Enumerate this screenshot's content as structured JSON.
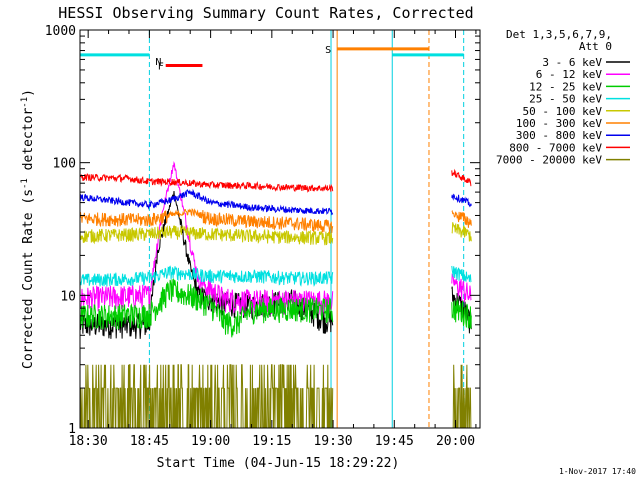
{
  "chart_data": {
    "type": "line",
    "title": "HESSI Observing Summary Count Rates, Corrected",
    "xlabel": "Start Time (04-Jun-15 18:29:22)",
    "ylabel_parts": [
      "Corrected Count Rate (s",
      "-1",
      " detector",
      "-1",
      ")"
    ],
    "yscale": "log",
    "ylim": [
      1,
      1000
    ],
    "xlim_minutes": [
      -2,
      96
    ],
    "x_tick_labels": [
      {
        "label": "18:30",
        "minutes": 0
      },
      {
        "label": "18:45",
        "minutes": 15
      },
      {
        "label": "19:00",
        "minutes": 30
      },
      {
        "label": "19:15",
        "minutes": 45
      },
      {
        "label": "19:30",
        "minutes": 60
      },
      {
        "label": "19:45",
        "minutes": 75
      },
      {
        "label": "20:00",
        "minutes": 90
      }
    ],
    "y_tick_labels": [
      {
        "label": "1",
        "value": 1
      },
      {
        "label": "10",
        "value": 10
      },
      {
        "label": "100",
        "value": 100
      },
      {
        "label": "1000",
        "value": 1000
      }
    ],
    "legend_header": [
      "Det 1,3,5,6,7,9,",
      "Att 0"
    ],
    "legend_position": "right",
    "footer_date": "1-Nov-2017 17:40",
    "gaps_minutes": [
      [
        60,
        89
      ]
    ],
    "series": [
      {
        "name": "3 - 6 keV",
        "color": "#000000",
        "points": [
          [
            -2,
            6
          ],
          [
            15,
            6
          ],
          [
            17,
            22
          ],
          [
            21,
            60
          ],
          [
            25,
            16
          ],
          [
            27,
            10
          ],
          [
            33,
            8.8
          ],
          [
            40,
            8.4
          ],
          [
            50,
            9.2
          ],
          [
            58,
            6.5
          ],
          [
            60,
            6.5
          ],
          [
            89,
            10
          ],
          [
            92,
            8
          ],
          [
            94,
            6
          ]
        ]
      },
      {
        "name": "6 - 12 keV",
        "color": "#ff00ff",
        "points": [
          [
            -2,
            9.5
          ],
          [
            15,
            10
          ],
          [
            18,
            40
          ],
          [
            21,
            100
          ],
          [
            25,
            25
          ],
          [
            27,
            13
          ],
          [
            33,
            9.5
          ],
          [
            40,
            9
          ],
          [
            50,
            9.2
          ],
          [
            58,
            9
          ],
          [
            60,
            9
          ],
          [
            89,
            13
          ],
          [
            92,
            11
          ],
          [
            94,
            9.5
          ]
        ]
      },
      {
        "name": "12 - 25 keV",
        "color": "#00cc00",
        "points": [
          [
            -2,
            7
          ],
          [
            15,
            7.2
          ],
          [
            20,
            11
          ],
          [
            25,
            10
          ],
          [
            30,
            8.5
          ],
          [
            33,
            6.5
          ],
          [
            36,
            6
          ],
          [
            40,
            7.8
          ],
          [
            50,
            8
          ],
          [
            60,
            7.8
          ],
          [
            89,
            8
          ],
          [
            92,
            7.5
          ],
          [
            94,
            7
          ]
        ]
      },
      {
        "name": "25 - 50 keV",
        "color": "#00e0e0",
        "points": [
          [
            -2,
            13
          ],
          [
            15,
            13.5
          ],
          [
            20,
            15
          ],
          [
            30,
            14
          ],
          [
            40,
            14
          ],
          [
            50,
            13.5
          ],
          [
            60,
            13.5
          ],
          [
            89,
            15.5
          ],
          [
            92,
            14
          ],
          [
            94,
            13
          ]
        ]
      },
      {
        "name": "50 - 100 keV",
        "color": "#c8c800",
        "points": [
          [
            -2,
            28
          ],
          [
            15,
            29
          ],
          [
            20,
            30
          ],
          [
            30,
            29
          ],
          [
            40,
            28
          ],
          [
            50,
            27.5
          ],
          [
            60,
            27
          ],
          [
            89,
            32
          ],
          [
            92,
            30
          ],
          [
            94,
            28
          ]
        ]
      },
      {
        "name": "100 - 300 keV",
        "color": "#ff8000",
        "points": [
          [
            -2,
            38
          ],
          [
            15,
            37
          ],
          [
            20,
            40
          ],
          [
            25,
            43
          ],
          [
            30,
            38
          ],
          [
            40,
            36
          ],
          [
            50,
            35
          ],
          [
            60,
            33
          ],
          [
            89,
            42
          ],
          [
            92,
            38
          ],
          [
            94,
            35
          ]
        ]
      },
      {
        "name": "300 - 800 keV",
        "color": "#0000ee",
        "points": [
          [
            -2,
            55
          ],
          [
            15,
            48
          ],
          [
            20,
            52
          ],
          [
            25,
            60
          ],
          [
            30,
            50
          ],
          [
            40,
            46
          ],
          [
            50,
            44
          ],
          [
            60,
            43
          ],
          [
            89,
            57
          ],
          [
            92,
            52
          ],
          [
            94,
            48
          ]
        ]
      },
      {
        "name": "800 - 7000 keV",
        "color": "#ff0000",
        "points": [
          [
            -2,
            78
          ],
          [
            10,
            76
          ],
          [
            15,
            72
          ],
          [
            20,
            72
          ],
          [
            25,
            70
          ],
          [
            30,
            68
          ],
          [
            40,
            67
          ],
          [
            50,
            65
          ],
          [
            60,
            64
          ],
          [
            89,
            85
          ],
          [
            92,
            76
          ],
          [
            94,
            70
          ]
        ]
      },
      {
        "name": "7000 - 20000 keV",
        "color": "#808000",
        "points": [
          [
            -2,
            2
          ],
          [
            15,
            1.7
          ],
          [
            20,
            3
          ],
          [
            30,
            2.6
          ],
          [
            40,
            2
          ],
          [
            50,
            1.8
          ],
          [
            60,
            1.7
          ],
          [
            89,
            2
          ],
          [
            92,
            2.5
          ],
          [
            94,
            2
          ]
        ]
      }
    ],
    "annotations": {
      "vertical_lines": [
        {
          "minutes": 15,
          "color": "#00d0e0",
          "style": "dashed"
        },
        {
          "minutes": 59.5,
          "color": "#00d0e0",
          "style": "solid"
        },
        {
          "minutes": 61,
          "color": "#ff8000",
          "style": "solid"
        },
        {
          "minutes": 74.5,
          "color": "#00d0e0",
          "style": "solid"
        },
        {
          "minutes": 83.5,
          "color": "#ff8000",
          "style": "dashed"
        },
        {
          "minutes": 92,
          "color": "#00d0e0",
          "style": "dashed"
        }
      ],
      "bars": [
        {
          "label": "",
          "from": -2,
          "to": 15,
          "color": "#00e0e0",
          "level": 650
        },
        {
          "label": "N",
          "from": 15,
          "to": 15,
          "color": "#00d0e0",
          "level": 650
        },
        {
          "label": "F",
          "from": 19,
          "to": 28,
          "color": "#ff0000",
          "level": 540
        },
        {
          "label": "S",
          "from": 61,
          "to": 83.5,
          "color": "#ff8000",
          "level": 720
        },
        {
          "label": "",
          "from": 74.5,
          "to": 92,
          "color": "#00e0e0",
          "level": 650
        }
      ]
    }
  }
}
